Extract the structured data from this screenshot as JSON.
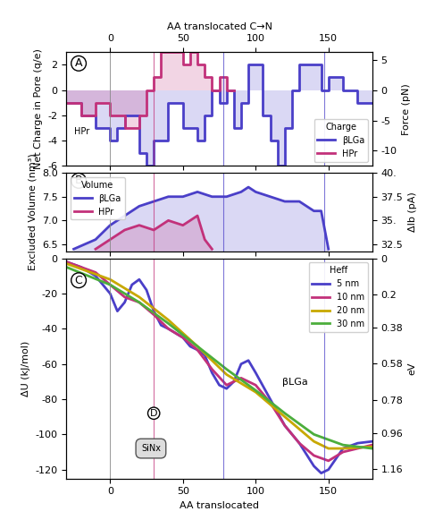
{
  "chart_data": [
    {
      "type": "step",
      "panel_label": "A",
      "xlabel": "AA translocated C→N",
      "ylabel": "Net Charge in Pore (q/e)",
      "y2label": "Force (pN)",
      "xlim": [
        -30,
        180
      ],
      "xticks": [
        0,
        50,
        100,
        150
      ],
      "ylim": [
        -6,
        3
      ],
      "yticks": [
        -6,
        -4,
        -2,
        0,
        2
      ],
      "y2lim": [
        -12.5,
        6.25
      ],
      "y2ticks": [
        -10,
        -5,
        0,
        5
      ],
      "legend": "lower right",
      "legend_title": "Charge",
      "annotations": [
        "HPr"
      ],
      "series": [
        {
          "name": "βLGa",
          "color": "#4a3fc8",
          "x": [
            -30,
            -20,
            -10,
            0,
            5,
            10,
            20,
            25,
            30,
            40,
            50,
            60,
            65,
            70,
            75,
            80,
            85,
            90,
            95,
            100,
            105,
            110,
            115,
            120,
            125,
            130,
            140,
            145,
            150,
            160,
            170,
            180
          ],
          "values": [
            -1,
            -2,
            -3,
            -4,
            -3,
            -2,
            -5,
            -6,
            -4,
            -1,
            -3,
            -4,
            -2,
            0,
            -1,
            0,
            -3,
            -1,
            2,
            2,
            -2,
            -4,
            -6,
            -3,
            0,
            2,
            2,
            0,
            1,
            0,
            -1,
            -1
          ]
        },
        {
          "name": "HPr",
          "color": "#c2317a",
          "x": [
            -30,
            -20,
            -10,
            0,
            10,
            20,
            25,
            30,
            35,
            45,
            50,
            55,
            60,
            65,
            70,
            75,
            80,
            85
          ],
          "values": [
            -1,
            -2,
            -1,
            -2,
            -3,
            -2,
            0,
            1,
            3,
            3,
            2,
            3,
            2,
            1,
            0,
            1,
            0,
            0
          ]
        }
      ]
    },
    {
      "type": "area",
      "panel_label": "B",
      "tick_labels": "y",
      "ylabel": "Excluded Volume (nm³)",
      "y2label": "ΔIb (pA)",
      "xlim": [
        -30,
        180
      ],
      "xticks": [
        0,
        50,
        100,
        150
      ],
      "ylim": [
        6.35,
        8.0
      ],
      "yticks": [
        6.5,
        7.0,
        7.5,
        8.0
      ],
      "y2lim": [
        31.75,
        40
      ],
      "y2ticks": [
        32.5,
        {
          "value": 35,
          "label": "35."
        },
        37.5,
        {
          "value": 40,
          "label": "40."
        }
      ],
      "legend": "upper left",
      "legend_title": "Volume",
      "series": [
        {
          "name": "βLGa",
          "color": "#4a3fc8",
          "x": [
            -25,
            -10,
            0,
            10,
            20,
            30,
            40,
            50,
            60,
            70,
            80,
            90,
            95,
            100,
            110,
            120,
            130,
            140,
            145,
            150
          ],
          "values": [
            6.4,
            6.6,
            6.9,
            7.1,
            7.3,
            7.4,
            7.5,
            7.5,
            7.6,
            7.5,
            7.5,
            7.6,
            7.7,
            7.6,
            7.5,
            7.4,
            7.4,
            7.2,
            7.2,
            6.4
          ]
        },
        {
          "name": "HPr",
          "color": "#c2317a",
          "x": [
            -10,
            0,
            10,
            20,
            30,
            40,
            50,
            60,
            65,
            70
          ],
          "values": [
            6.4,
            6.6,
            6.8,
            6.9,
            6.8,
            7.0,
            6.9,
            7.1,
            6.6,
            6.4
          ]
        }
      ]
    },
    {
      "type": "line",
      "panel_label": "C",
      "xlabel": "AA translocated",
      "ylabel": "ΔU (kJ/mol)",
      "y2label": "eV",
      "xlim": [
        -30,
        180
      ],
      "xticks": [
        0,
        50,
        100,
        150
      ],
      "ylim": [
        -125,
        0
      ],
      "yticks": [
        -120,
        -100,
        -80,
        -60,
        -40,
        -20,
        0
      ],
      "y2lim": [
        1.21,
        0
      ],
      "y2ticks": [
        0,
        0.2,
        0.38,
        0.58,
        0.78,
        0.96,
        1.16
      ],
      "legend": "upper right",
      "legend_title": "Heff",
      "annotations": [
        "βLGa",
        "SiNx",
        "D"
      ],
      "series": [
        {
          "name": "5 nm",
          "color": "#4a3fc8",
          "x": [
            -30,
            -20,
            -10,
            0,
            5,
            10,
            15,
            20,
            25,
            30,
            35,
            40,
            50,
            55,
            60,
            65,
            70,
            75,
            80,
            85,
            90,
            95,
            100,
            110,
            120,
            130,
            140,
            145,
            150,
            160,
            170,
            180
          ],
          "values": [
            -2,
            -5,
            -10,
            -20,
            -30,
            -25,
            -15,
            -12,
            -18,
            -30,
            -38,
            -40,
            -45,
            -50,
            -52,
            -55,
            -65,
            -72,
            -74,
            -70,
            -60,
            -58,
            -65,
            -80,
            -95,
            -105,
            -118,
            -122,
            -120,
            -108,
            -105,
            -104
          ]
        },
        {
          "name": "10 nm",
          "color": "#c2317a",
          "x": [
            -30,
            -10,
            0,
            10,
            20,
            30,
            40,
            50,
            60,
            70,
            80,
            90,
            100,
            110,
            120,
            130,
            140,
            150,
            160,
            180
          ],
          "values": [
            -2,
            -8,
            -15,
            -22,
            -25,
            -32,
            -40,
            -45,
            -52,
            -63,
            -72,
            -68,
            -72,
            -82,
            -95,
            -105,
            -112,
            -115,
            -110,
            -106
          ]
        },
        {
          "name": "20 nm",
          "color": "#c8a800",
          "x": [
            -30,
            0,
            20,
            40,
            60,
            80,
            100,
            120,
            140,
            150,
            160,
            180
          ],
          "values": [
            -3,
            -12,
            -22,
            -35,
            -50,
            -66,
            -76,
            -90,
            -104,
            -108,
            -108,
            -107
          ]
        },
        {
          "name": "30 nm",
          "color": "#4cae3c",
          "x": [
            -30,
            0,
            20,
            40,
            60,
            80,
            100,
            120,
            140,
            160,
            180
          ],
          "values": [
            -5,
            -15,
            -25,
            -37,
            -50,
            -63,
            -75,
            -88,
            -100,
            -106,
            -108
          ]
        }
      ]
    }
  ],
  "crosshairs": [
    {
      "x": 30,
      "color": "#c2317a"
    },
    {
      "x": 78,
      "color": "#4a3fc8"
    },
    {
      "x": 147,
      "color": "#4a3fc8"
    }
  ]
}
